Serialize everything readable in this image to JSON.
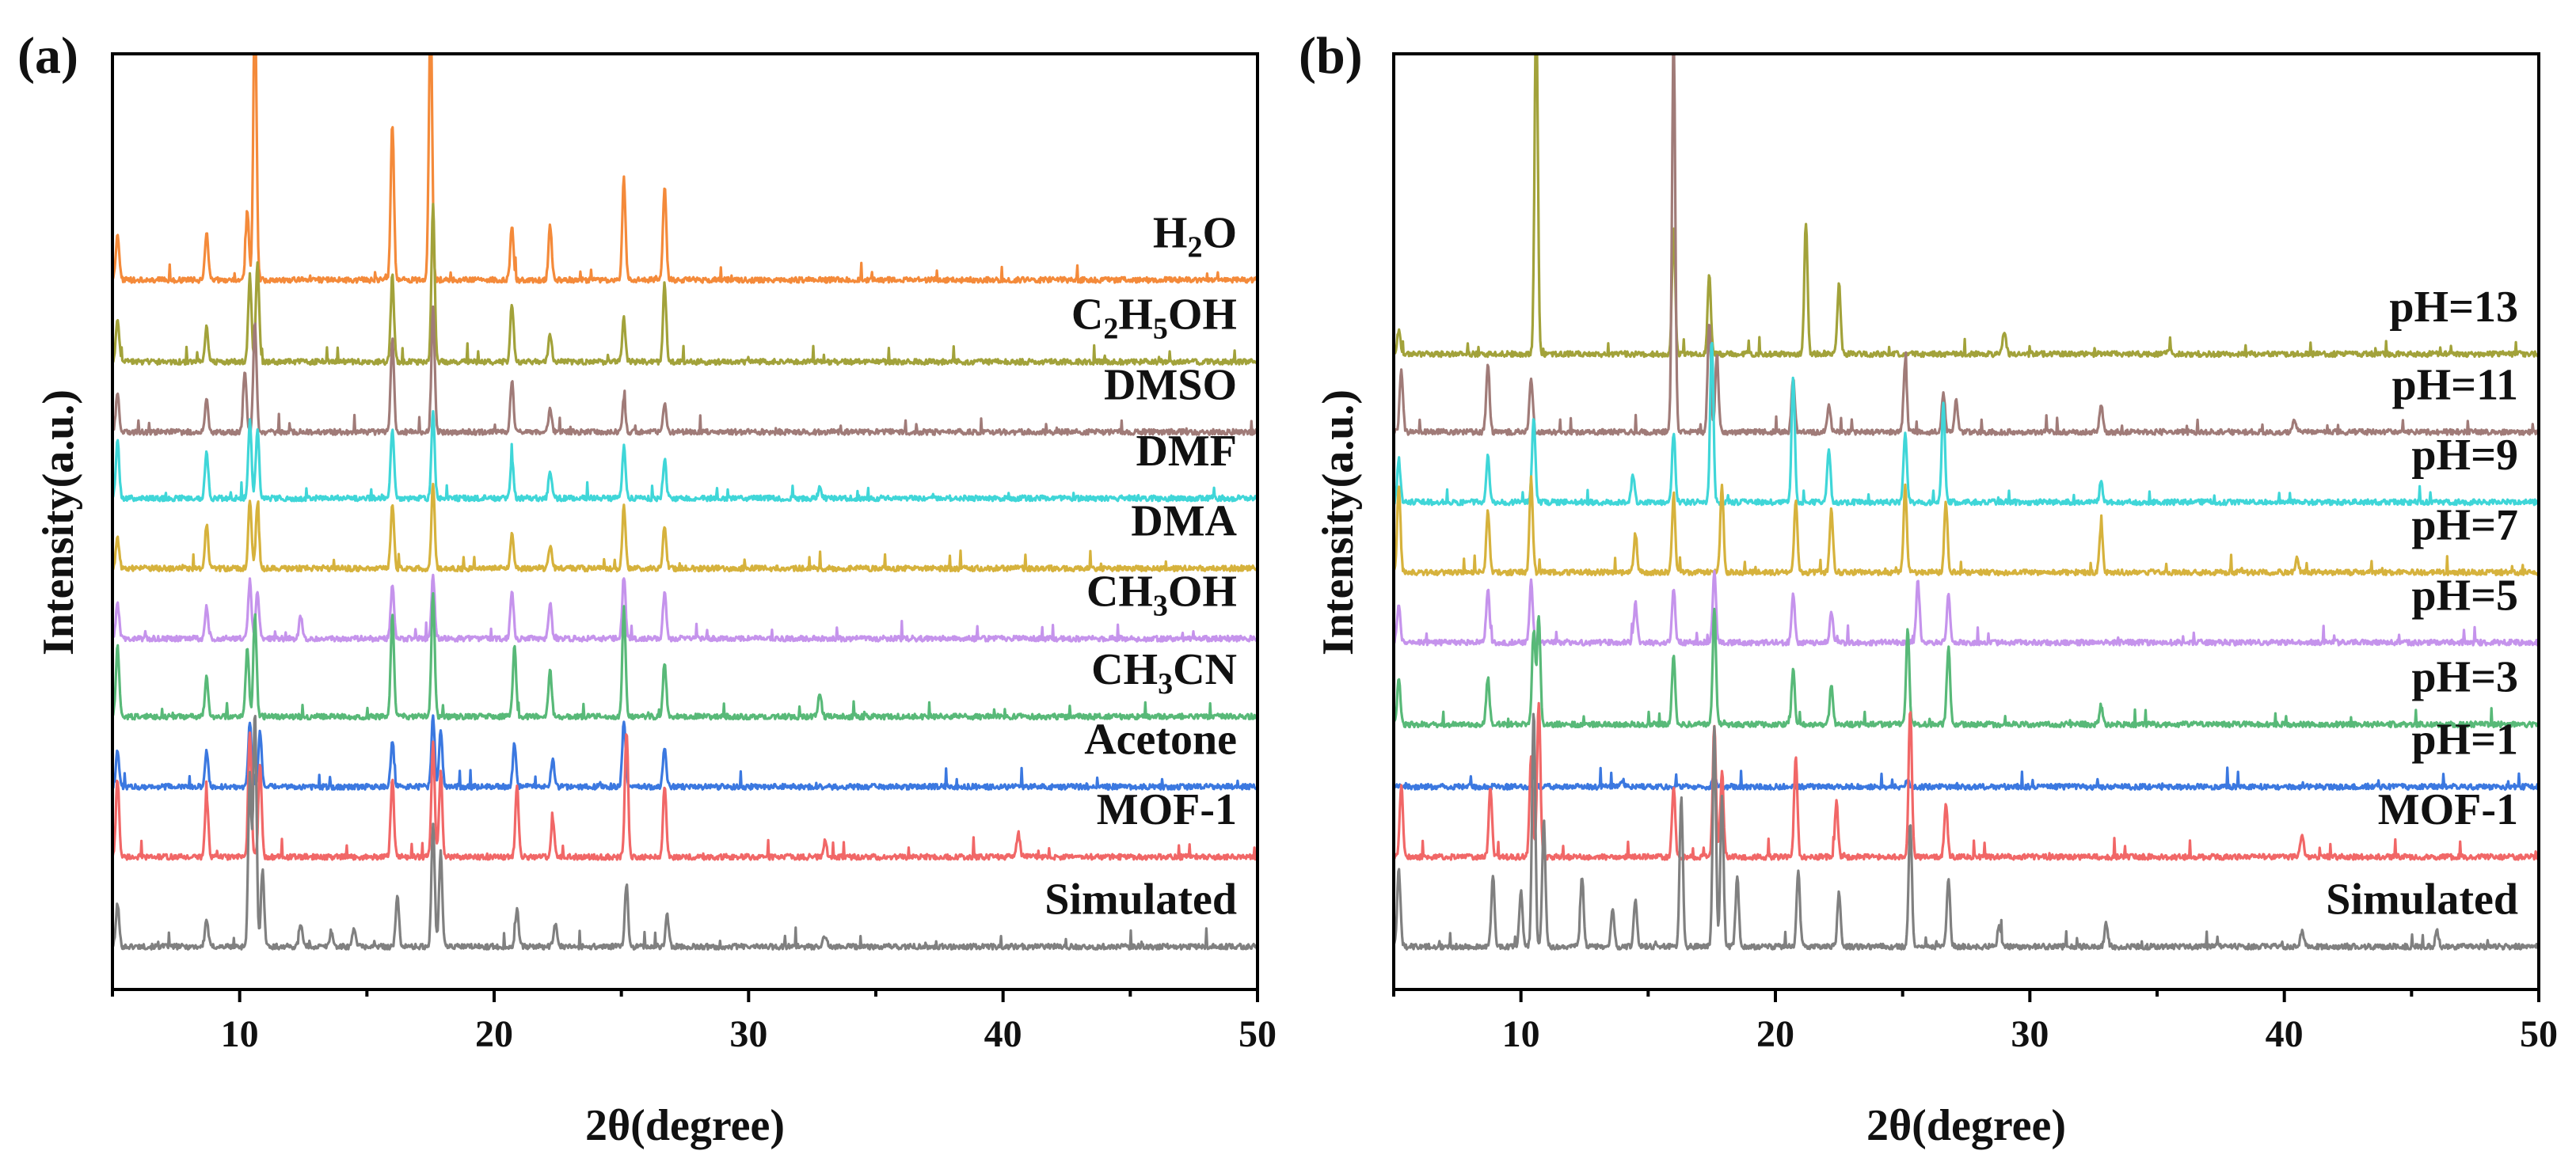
{
  "figure": {
    "panels": [
      "(a)",
      "(b)"
    ]
  },
  "chart_data": [
    {
      "type": "line",
      "panel": "(a)",
      "title": "",
      "xlabel": "2θ(degree)",
      "ylabel": "Intensity(a.u.)",
      "xlim": [
        5,
        50
      ],
      "xticks": [
        10,
        20,
        30,
        40,
        50
      ],
      "ylim": [
        0,
        12
      ],
      "yticks_shown": false,
      "peak_positions_2theta": [
        5.2,
        8.7,
        10.3,
        10.6,
        10.9,
        12.4,
        16.0,
        17.6,
        17.9,
        20.7,
        22.2,
        25.1,
        26.7,
        32.8
      ],
      "series": [
        {
          "name": "Simulated",
          "label_main": "Simulated",
          "label_sub": "",
          "label_tail": "",
          "color": "#808080",
          "offset": 0.0,
          "peaks": [
            [
              5.2,
              0.55
            ],
            [
              8.7,
              0.35
            ],
            [
              10.4,
              2.2
            ],
            [
              10.6,
              3.0
            ],
            [
              10.9,
              1.0
            ],
            [
              12.4,
              0.3
            ],
            [
              13.6,
              0.2
            ],
            [
              14.5,
              0.25
            ],
            [
              16.2,
              0.65
            ],
            [
              17.6,
              1.6
            ],
            [
              17.9,
              1.2
            ],
            [
              20.9,
              0.5
            ],
            [
              22.4,
              0.3
            ],
            [
              25.2,
              0.8
            ],
            [
              26.8,
              0.4
            ],
            [
              33.0,
              0.15
            ]
          ]
        },
        {
          "name": "MOF-1",
          "label_main": "MOF-1",
          "label_sub": "",
          "label_tail": "",
          "color": "#F16767",
          "offset": 1.15,
          "peaks": [
            [
              5.2,
              1.0
            ],
            [
              8.7,
              0.8
            ],
            [
              10.4,
              1.6
            ],
            [
              10.8,
              1.2
            ],
            [
              16.0,
              1.0
            ],
            [
              17.6,
              1.5
            ],
            [
              17.9,
              1.1
            ],
            [
              20.9,
              0.9
            ],
            [
              22.3,
              0.5
            ],
            [
              25.2,
              1.6
            ],
            [
              26.7,
              0.9
            ],
            [
              33.0,
              0.2
            ],
            [
              40.6,
              0.3
            ]
          ]
        },
        {
          "name": "Acetone",
          "label_main": "Acetone",
          "label_sub": "",
          "label_tail": "",
          "color": "#3B78E0",
          "offset": 2.05,
          "peaks": [
            [
              5.2,
              0.45
            ],
            [
              8.7,
              0.45
            ],
            [
              10.4,
              0.85
            ],
            [
              10.8,
              0.7
            ],
            [
              16.0,
              0.6
            ],
            [
              17.6,
              0.9
            ],
            [
              17.9,
              0.75
            ],
            [
              20.8,
              0.55
            ],
            [
              22.3,
              0.35
            ],
            [
              25.1,
              0.85
            ],
            [
              26.7,
              0.5
            ]
          ]
        },
        {
          "name": "CH3CN",
          "label_main": "CH",
          "label_sub": "3",
          "label_tail": "CN",
          "color": "#58B978",
          "offset": 2.95,
          "peaks": [
            [
              5.2,
              0.9
            ],
            [
              8.7,
              0.5
            ],
            [
              10.3,
              0.9
            ],
            [
              10.6,
              1.3
            ],
            [
              16.0,
              1.3
            ],
            [
              17.6,
              1.6
            ],
            [
              20.8,
              0.9
            ],
            [
              22.2,
              0.6
            ],
            [
              25.1,
              1.4
            ],
            [
              26.7,
              0.7
            ],
            [
              32.8,
              0.3
            ]
          ]
        },
        {
          "name": "CH3OH",
          "label_main": "CH",
          "label_sub": "3",
          "label_tail": "OH",
          "color": "#C593EC",
          "offset": 3.95,
          "peaks": [
            [
              5.2,
              0.45
            ],
            [
              8.7,
              0.4
            ],
            [
              10.4,
              0.75
            ],
            [
              10.7,
              0.6
            ],
            [
              12.4,
              0.3
            ],
            [
              16.0,
              0.7
            ],
            [
              17.6,
              0.8
            ],
            [
              20.7,
              0.6
            ],
            [
              22.2,
              0.45
            ],
            [
              25.1,
              0.8
            ],
            [
              26.7,
              0.6
            ]
          ]
        },
        {
          "name": "DMA",
          "label_main": "DMA",
          "label_sub": "",
          "label_tail": "",
          "color": "#D6B23C",
          "offset": 4.85,
          "peaks": [
            [
              5.2,
              0.4
            ],
            [
              8.7,
              0.55
            ],
            [
              10.4,
              0.9
            ],
            [
              10.7,
              0.8
            ],
            [
              16.0,
              0.85
            ],
            [
              17.6,
              1.1
            ],
            [
              20.7,
              0.45
            ],
            [
              22.2,
              0.3
            ],
            [
              25.1,
              0.8
            ],
            [
              26.7,
              0.55
            ]
          ]
        },
        {
          "name": "DMF",
          "label_main": "DMF",
          "label_sub": "",
          "label_tail": "",
          "color": "#3FD6D8",
          "offset": 5.75,
          "peaks": [
            [
              5.2,
              0.75
            ],
            [
              8.7,
              0.6
            ],
            [
              10.4,
              1.0
            ],
            [
              10.7,
              0.9
            ],
            [
              16.0,
              0.9
            ],
            [
              17.6,
              1.1
            ],
            [
              20.7,
              0.5
            ],
            [
              22.2,
              0.35
            ],
            [
              25.1,
              0.65
            ],
            [
              26.7,
              0.5
            ],
            [
              32.8,
              0.15
            ]
          ]
        },
        {
          "name": "DMSO",
          "label_main": "DMSO",
          "label_sub": "",
          "label_tail": "",
          "color": "#A07B78",
          "offset": 6.6,
          "peaks": [
            [
              5.2,
              0.5
            ],
            [
              8.7,
              0.4
            ],
            [
              10.2,
              0.8
            ],
            [
              10.6,
              1.4
            ],
            [
              16.0,
              1.2
            ],
            [
              17.6,
              1.6
            ],
            [
              20.7,
              0.65
            ],
            [
              22.2,
              0.3
            ],
            [
              25.1,
              0.4
            ],
            [
              26.7,
              0.35
            ]
          ]
        },
        {
          "name": "C2H5OH",
          "label_main": "C",
          "label_sub": "2",
          "label_tail": "H",
          "label_sub2": "5",
          "label_tail2": "OH",
          "color": "#A2A23A",
          "offset": 7.5,
          "peaks": [
            [
              5.2,
              0.55
            ],
            [
              8.7,
              0.45
            ],
            [
              10.4,
              1.1
            ],
            [
              10.7,
              1.3
            ],
            [
              16.0,
              1.1
            ],
            [
              17.6,
              2.0
            ],
            [
              20.7,
              0.75
            ],
            [
              22.2,
              0.35
            ],
            [
              25.1,
              0.55
            ],
            [
              26.7,
              1.0
            ]
          ]
        },
        {
          "name": "H2O",
          "label_main": "H",
          "label_sub": "2",
          "label_tail": "O",
          "color": "#F48A3A",
          "offset": 8.55,
          "peaks": [
            [
              5.2,
              0.6
            ],
            [
              8.7,
              0.6
            ],
            [
              10.3,
              0.9
            ],
            [
              10.6,
              3.6
            ],
            [
              16.0,
              2.0
            ],
            [
              17.5,
              3.5
            ],
            [
              20.7,
              0.7
            ],
            [
              22.2,
              0.7
            ],
            [
              25.1,
              1.3
            ],
            [
              26.7,
              1.2
            ]
          ]
        }
      ]
    },
    {
      "type": "line",
      "panel": "(b)",
      "title": "",
      "xlabel": "2θ(degree)",
      "ylabel": "Intensity(a.u.)",
      "xlim": [
        5,
        50
      ],
      "xticks": [
        10,
        20,
        30,
        40,
        50
      ],
      "ylim": [
        0,
        12
      ],
      "yticks_shown": false,
      "series": [
        {
          "name": "Simulated",
          "label_main": "Simulated",
          "label_sub": "",
          "label_tail": "",
          "color": "#808080",
          "offset": 0.0,
          "peaks": [
            [
              5.2,
              1.0
            ],
            [
              8.9,
              0.9
            ],
            [
              10.0,
              0.7
            ],
            [
              10.5,
              3.0
            ],
            [
              10.9,
              1.6
            ],
            [
              12.4,
              0.9
            ],
            [
              13.6,
              0.5
            ],
            [
              14.5,
              0.6
            ],
            [
              16.3,
              1.9
            ],
            [
              17.6,
              2.8
            ],
            [
              17.9,
              1.9
            ],
            [
              18.5,
              0.9
            ],
            [
              20.9,
              1.0
            ],
            [
              22.5,
              0.7
            ],
            [
              25.3,
              1.6
            ],
            [
              26.8,
              0.9
            ],
            [
              28.8,
              0.3
            ],
            [
              33.0,
              0.3
            ],
            [
              40.7,
              0.2
            ],
            [
              46.0,
              0.2
            ]
          ]
        },
        {
          "name": "MOF-1",
          "label_main": "MOF-1",
          "label_sub": "",
          "label_tail": "",
          "color": "#F16767",
          "offset": 1.15,
          "peaks": [
            [
              5.3,
              0.9
            ],
            [
              8.8,
              0.9
            ],
            [
              10.4,
              1.3
            ],
            [
              10.7,
              2.0
            ],
            [
              16.0,
              0.9
            ],
            [
              17.6,
              1.7
            ],
            [
              17.9,
              1.1
            ],
            [
              20.8,
              1.3
            ],
            [
              22.4,
              0.7
            ],
            [
              25.3,
              1.9
            ],
            [
              26.7,
              0.7
            ],
            [
              40.7,
              0.3
            ]
          ]
        },
        {
          "name": "pH=1",
          "label_main": "pH=1",
          "label_sub": "",
          "label_tail": "",
          "color": "#3B78E0",
          "offset": 2.05,
          "peaks": [
            [
              10.5,
              0.15
            ],
            [
              14.0,
              0.08
            ],
            [
              17.6,
              0.15
            ],
            [
              25.2,
              0.1
            ]
          ]
        },
        {
          "name": "pH=3",
          "label_main": "pH=3",
          "label_sub": "",
          "label_tail": "",
          "color": "#58B978",
          "offset": 2.85,
          "peaks": [
            [
              5.2,
              0.6
            ],
            [
              8.7,
              0.6
            ],
            [
              10.5,
              1.2
            ],
            [
              10.7,
              1.4
            ],
            [
              16.0,
              0.9
            ],
            [
              17.6,
              1.5
            ],
            [
              20.7,
              0.7
            ],
            [
              22.2,
              0.5
            ],
            [
              25.2,
              1.2
            ],
            [
              26.8,
              1.0
            ],
            [
              32.8,
              0.25
            ]
          ]
        },
        {
          "name": "pH=5",
          "label_main": "pH=5",
          "label_sub": "",
          "label_tail": "",
          "color": "#C593EC",
          "offset": 3.9,
          "peaks": [
            [
              5.2,
              0.5
            ],
            [
              8.7,
              0.7
            ],
            [
              10.4,
              0.8
            ],
            [
              14.5,
              0.5
            ],
            [
              16.0,
              0.7
            ],
            [
              17.6,
              0.9
            ],
            [
              20.7,
              0.6
            ],
            [
              22.2,
              0.4
            ],
            [
              25.6,
              0.8
            ],
            [
              26.8,
              0.6
            ]
          ]
        },
        {
          "name": "pH=7",
          "label_main": "pH=7",
          "label_sub": "",
          "label_tail": "",
          "color": "#D6B23C",
          "offset": 4.8,
          "peaks": [
            [
              5.2,
              1.1
            ],
            [
              8.7,
              0.8
            ],
            [
              10.4,
              1.2
            ],
            [
              14.5,
              0.5
            ],
            [
              16.0,
              1.0
            ],
            [
              17.9,
              1.1
            ],
            [
              20.8,
              0.9
            ],
            [
              22.2,
              0.8
            ],
            [
              25.1,
              1.1
            ],
            [
              26.7,
              0.9
            ],
            [
              32.8,
              0.6
            ],
            [
              40.5,
              0.2
            ]
          ]
        },
        {
          "name": "pH=9",
          "label_main": "pH=9",
          "label_sub": "",
          "label_tail": "",
          "color": "#3FD6D8",
          "offset": 5.7,
          "peaks": [
            [
              5.2,
              0.55
            ],
            [
              8.7,
              0.6
            ],
            [
              10.5,
              1.1
            ],
            [
              14.4,
              0.35
            ],
            [
              16.0,
              0.9
            ],
            [
              17.5,
              2.1
            ],
            [
              20.7,
              1.6
            ],
            [
              22.1,
              0.7
            ],
            [
              25.1,
              0.9
            ],
            [
              26.6,
              1.3
            ],
            [
              32.8,
              0.25
            ]
          ]
        },
        {
          "name": "pH=11",
          "label_main": "pH=11",
          "label_sub": "",
          "label_tail": "",
          "color": "#A07B78",
          "offset": 6.6,
          "peaks": [
            [
              5.3,
              0.8
            ],
            [
              8.7,
              0.9
            ],
            [
              10.4,
              0.7
            ],
            [
              16.0,
              5.1
            ],
            [
              17.4,
              1.4
            ],
            [
              17.7,
              1.0
            ],
            [
              20.7,
              0.7
            ],
            [
              22.1,
              0.35
            ],
            [
              25.1,
              0.9
            ],
            [
              26.6,
              0.5
            ],
            [
              27.1,
              0.4
            ],
            [
              32.8,
              0.35
            ],
            [
              40.4,
              0.15
            ]
          ]
        },
        {
          "name": "pH=13",
          "label_main": "pH=13",
          "label_sub": "",
          "label_tail": "",
          "color": "#A2A23A",
          "offset": 7.6,
          "peaks": [
            [
              5.2,
              0.3
            ],
            [
              10.6,
              4.5
            ],
            [
              16.0,
              1.6
            ],
            [
              17.4,
              1.0
            ],
            [
              21.2,
              1.7
            ],
            [
              22.5,
              0.9
            ],
            [
              29.0,
              0.3
            ],
            [
              35.5,
              0.08
            ]
          ]
        }
      ]
    }
  ]
}
